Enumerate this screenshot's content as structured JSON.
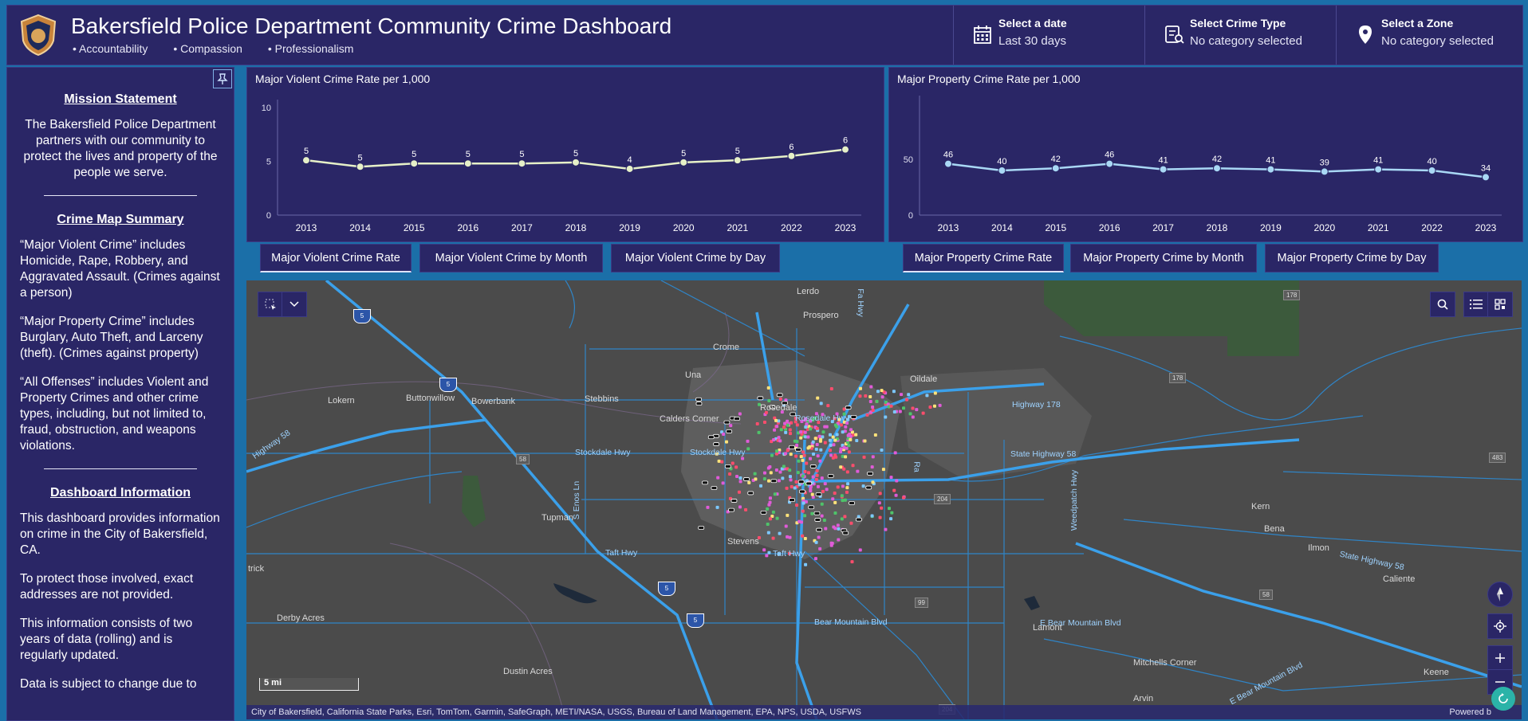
{
  "header": {
    "title": "Bakersfield Police Department Community Crime Dashboard",
    "taglines": [
      "Accountability",
      "Compassion",
      "Professionalism"
    ],
    "selectors": [
      {
        "label": "Select a date",
        "value": "Last 30 days",
        "icon": "calendar-icon"
      },
      {
        "label": "Select Crime Type",
        "value": "No category selected",
        "icon": "filter-list-icon"
      },
      {
        "label": "Select a Zone",
        "value": "No category selected",
        "icon": "map-pin-icon"
      }
    ],
    "colors": {
      "panel": "#2a2666",
      "accent": "#dfe3ff"
    }
  },
  "sidebar": {
    "mission_heading": "Mission Statement",
    "mission_text": "The Bakersfield Police Department partners with our community to protect the lives and property of the people we serve.",
    "summary_heading": "Crime Map Summary",
    "summary_paragraphs": [
      "“Major Violent Crime” includes Homicide, Rape, Robbery, and Aggravated Assault. (Crimes against a person)",
      "“Major Property Crime” includes Burglary, Auto Theft, and Larceny (theft). (Crimes against property)",
      "“All Offenses” includes Violent and Property Crimes and other crime types, including, but not limited to, fraud, obstruction, and weapons violations."
    ],
    "dashboard_heading": "Dashboard Information",
    "dashboard_paragraphs": [
      "This dashboard provides information on crime in the City of Bakersfield, CA.",
      "To protect those involved, exact addresses are not provided.",
      "This information consists of two years of data (rolling) and is regularly updated.",
      "Data is subject to change due to"
    ]
  },
  "chart_data": [
    {
      "type": "line",
      "title": "Major Violent Crime Rate per 1,000",
      "x": [
        "2013",
        "2014",
        "2015",
        "2016",
        "2017",
        "2018",
        "2019",
        "2020",
        "2021",
        "2022",
        "2023"
      ],
      "values": [
        5.1,
        4.5,
        4.8,
        4.8,
        4.8,
        4.9,
        4.3,
        4.9,
        5.1,
        5.5,
        6.1
      ],
      "data_labels": [
        "5",
        "5",
        "5",
        "5",
        "5",
        "5",
        "4",
        "5",
        "5",
        "6",
        "6"
      ],
      "ylim": [
        0,
        10
      ],
      "yticks": [
        "0",
        "5",
        "10"
      ],
      "color": "#e6f0c8"
    },
    {
      "type": "line",
      "title": "Major Property Crime Rate per 1,000",
      "x": [
        "2013",
        "2014",
        "2015",
        "2016",
        "2017",
        "2018",
        "2019",
        "2020",
        "2021",
        "2022",
        "2023"
      ],
      "values": [
        46,
        40,
        42,
        46,
        41,
        42,
        41,
        39,
        41,
        40,
        34
      ],
      "data_labels": [
        "46",
        "40",
        "42",
        "46",
        "41",
        "42",
        "41",
        "39",
        "41",
        "40",
        "34"
      ],
      "ylim": [
        0,
        100
      ],
      "yticks": [
        "0",
        "50"
      ],
      "color": "#a9d8f5"
    }
  ],
  "tabs": {
    "violent": [
      "Major Violent Crime Rate",
      "Major Violent Crime by Month",
      "Major Violent Crime by Day"
    ],
    "property": [
      "Major Property Crime Rate",
      "Major Property Crime by Month",
      "Major Property Crime by Day"
    ]
  },
  "map": {
    "places": [
      "Lerdo",
      "Prospero",
      "Crome",
      "Una",
      "Oildale",
      "Lokern",
      "Buttonwillow",
      "Bowerbank",
      "Stebbins",
      "Calders Corner",
      "Rosedale",
      "Stevens",
      "Tupman",
      "Derby Acres",
      "Dustin Acres",
      "Lamont",
      "Mitchells Corner",
      "Arvin",
      "Kern",
      "Bena",
      "Ilmon",
      "Caliente",
      "Keene",
      "trick"
    ],
    "roads": [
      "Stockdale Hwy",
      "Stockdale Hwy",
      "Taft Hwy",
      "Taft Hwy",
      "Bear Mountain Blvd",
      "E Bear Mountain Blvd",
      "State Highway 58",
      "Highway 58",
      "Rosedale Hwy",
      "S Enos Ln",
      "Weedpatch Hwy",
      "State Highway 58",
      "Highway 178",
      "E Bear Mountain Blvd",
      "Fa Hwy",
      "Ra"
    ],
    "shields": [
      "5",
      "5",
      "5",
      "5",
      "58",
      "99",
      "204",
      "204",
      "58"
    ],
    "route_boxes": [
      "178",
      "178",
      "483"
    ],
    "scale": "5 mi",
    "attribution": "City of Bakersfield, California State Parks, Esri, TomTom, Garmin, SafeGraph, METI/NASA, USGS, Bureau of Land Management, EPA, NPS, USDA, USFWS",
    "powered_by": "Powered b"
  }
}
